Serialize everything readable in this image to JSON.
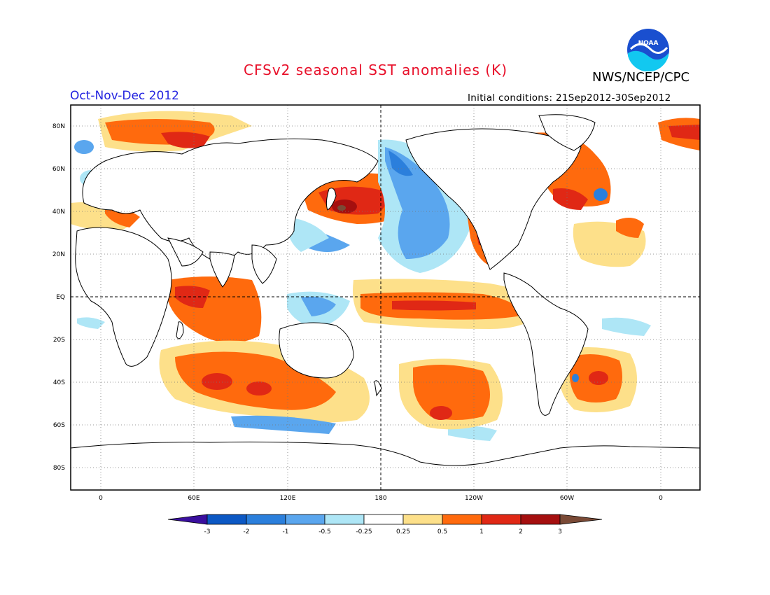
{
  "header": {
    "title": "CFSv2 seasonal SST anomalies (K)",
    "agency": "NWS/NCEP/CPC",
    "logo_text": "NOAA",
    "season": "Oct-Nov-Dec 2012",
    "initial_conditions": "Initial conditions: 21Sep2012-30Sep2012"
  },
  "map": {
    "lat_labels": [
      "80N",
      "60N",
      "40N",
      "20N",
      "EQ",
      "20S",
      "40S",
      "60S",
      "80S"
    ],
    "lon_labels": [
      "0",
      "60E",
      "120E",
      "180",
      "120W",
      "60W",
      "0"
    ],
    "reference_lines": [
      "EQ",
      "180"
    ]
  },
  "colorbar": {
    "levels": [
      "-3",
      "-2",
      "-1",
      "-0.5",
      "-0.25",
      "0.25",
      "0.5",
      "1",
      "2",
      "3"
    ],
    "colors": {
      "below_min": "#3a0f9e",
      "lt_m2": "#0c58c4",
      "m2_m1": "#2b7fdc",
      "m1_m05": "#5aa6ee",
      "m05_m025": "#aee6f6",
      "m025_025": "#ffffff",
      "p025_05": "#fde08a",
      "p05_1": "#ff6a0d",
      "p1_2": "#e02815",
      "p2_3": "#a50f0f",
      "above_max": "#7a4a36"
    }
  }
}
